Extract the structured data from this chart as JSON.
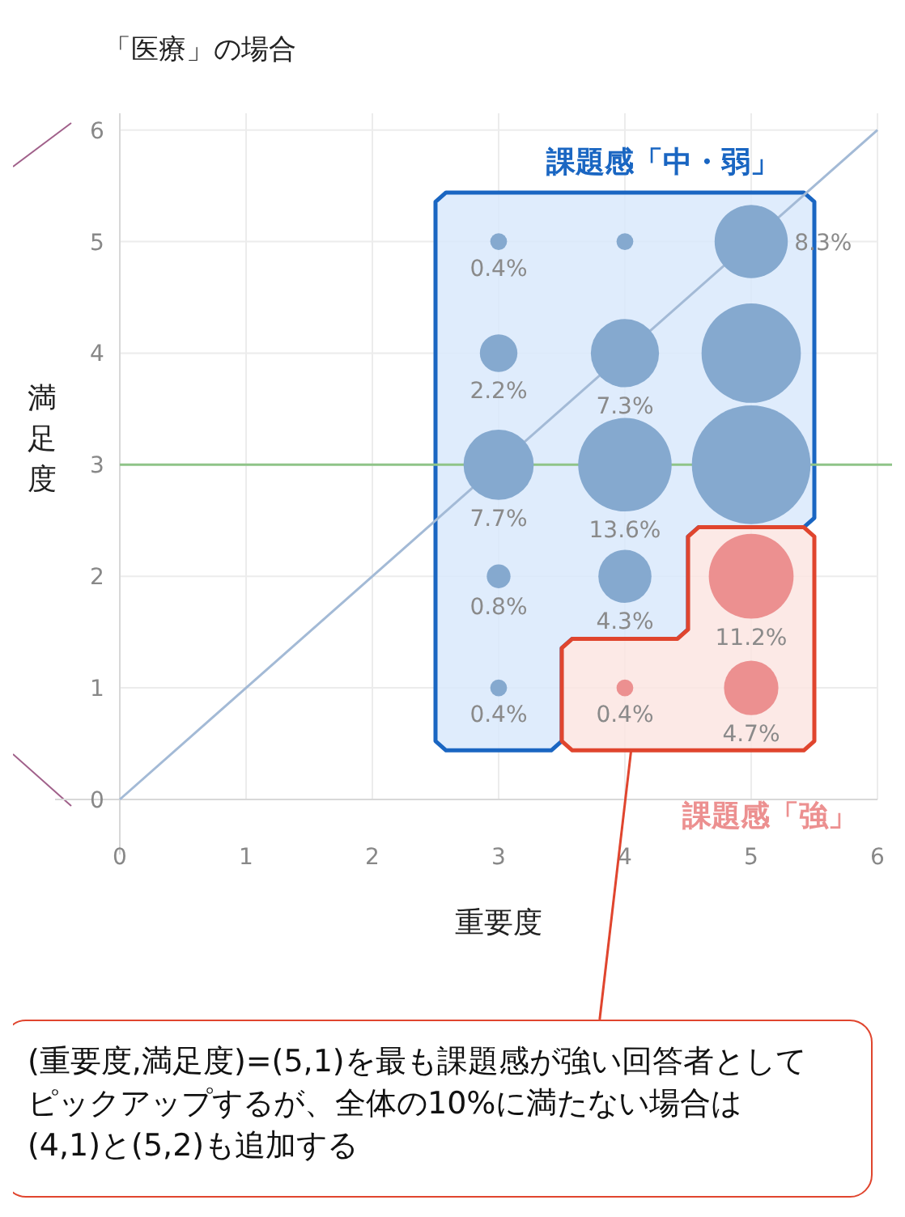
{
  "chart_data": {
    "type": "bubble",
    "title": "「医療」の場合",
    "xlabel": "重要度",
    "ylabel": "満足度",
    "xlim": [
      0,
      6
    ],
    "ylim": [
      0,
      6.15
    ],
    "xticks": [
      0,
      1,
      2,
      3,
      4,
      5,
      6
    ],
    "yticks": [
      0,
      1,
      2,
      3,
      4,
      5,
      6
    ],
    "grid": true,
    "series": [
      {
        "type": "line",
        "color": "#a3bad6",
        "x": [
          0,
          6
        ],
        "values": [
          0,
          6
        ]
      },
      {
        "name": "課題感「中・弱」",
        "color": "#85a9cf",
        "x": [
          3,
          4,
          5,
          3,
          4,
          5,
          3,
          4,
          5,
          3,
          4,
          3
        ],
        "values": [
          5,
          5,
          5,
          4,
          4,
          4,
          3,
          3,
          3,
          2,
          2,
          1
        ],
        "sizes": [
          0.02,
          0.02,
          0.38,
          0.1,
          0.33,
          0.7,
          0.35,
          0.62,
          1,
          0.04,
          0.2,
          0.02
        ]
      },
      {
        "name": "課題感「強」",
        "color": "#ec9090",
        "x": [
          5,
          4,
          5
        ],
        "values": [
          2,
          1,
          1
        ],
        "sizes": [
          0.51,
          0.02,
          0.21
        ]
      }
    ],
    "ref_lines": [
      {
        "axis": "y",
        "value": 3,
        "color": "#8fc488"
      }
    ],
    "annotations": [
      {
        "text": "0.4%",
        "x": 3,
        "y": 5
      },
      {
        "text": "8.3%",
        "x": 5,
        "y": 5
      },
      {
        "text": "2.2%",
        "x": 3,
        "y": 4
      },
      {
        "text": "7.3%",
        "x": 4,
        "y": 4
      },
      {
        "text": "7.7%",
        "x": 3,
        "y": 3
      },
      {
        "text": "13.6%",
        "x": 4,
        "y": 3
      },
      {
        "text": "0.8%",
        "x": 3,
        "y": 2
      },
      {
        "text": "4.3%",
        "x": 4,
        "y": 2
      },
      {
        "text": "11.2%",
        "x": 5,
        "y": 2
      },
      {
        "text": "0.4%",
        "x": 3,
        "y": 1
      },
      {
        "text": "0.4%",
        "x": 4,
        "y": 1
      },
      {
        "text": "4.7%",
        "x": 5,
        "y": 1
      },
      "(重要度,満足度)=(5,1)を最も課題感が強い回答者としてピックアップするが、全体の10%に満たない場合は(4,1)と(5,2)も追加する"
    ]
  }
}
